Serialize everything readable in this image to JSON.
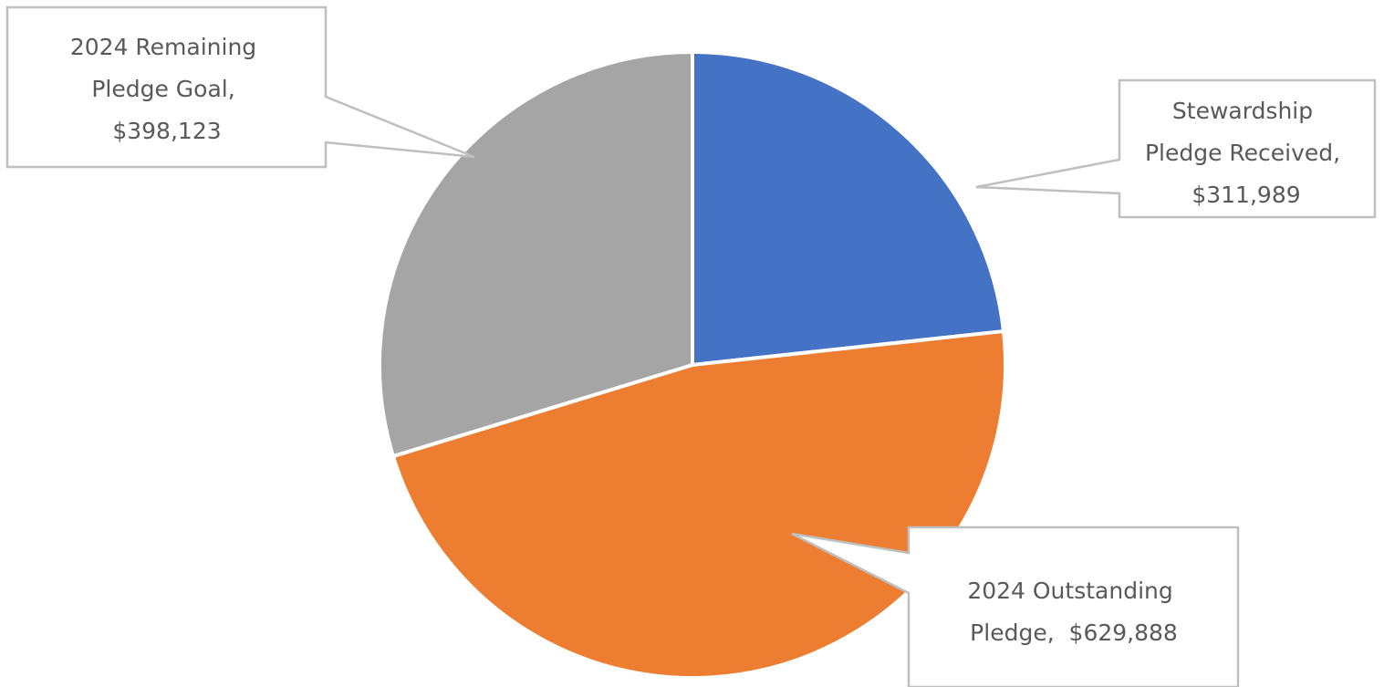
{
  "chart_data": {
    "type": "pie",
    "start_angle_deg": 0,
    "direction": "clockwise",
    "slices": [
      {
        "label": "Stewardship Pledge Received",
        "value": 311989,
        "value_label": "$311,989",
        "color": "#4472C4"
      },
      {
        "label": "2024 Outstanding Pledge",
        "value": 629888,
        "value_label": "$629,888",
        "color": "#ED7D31"
      },
      {
        "label": "2024 Remaining Pledge Goal",
        "value": 398123,
        "value_label": "$398,123",
        "color": "#A5A5A5"
      }
    ],
    "callouts": [
      {
        "lines": [
          "Stewardship",
          "Pledge Received,",
          "$311,989"
        ]
      },
      {
        "lines": [
          "2024 Outstanding",
          "Pledge,  $629,888"
        ]
      },
      {
        "lines": [
          "2024 Remaining",
          "Pledge Goal,",
          "$398,123"
        ]
      }
    ]
  }
}
